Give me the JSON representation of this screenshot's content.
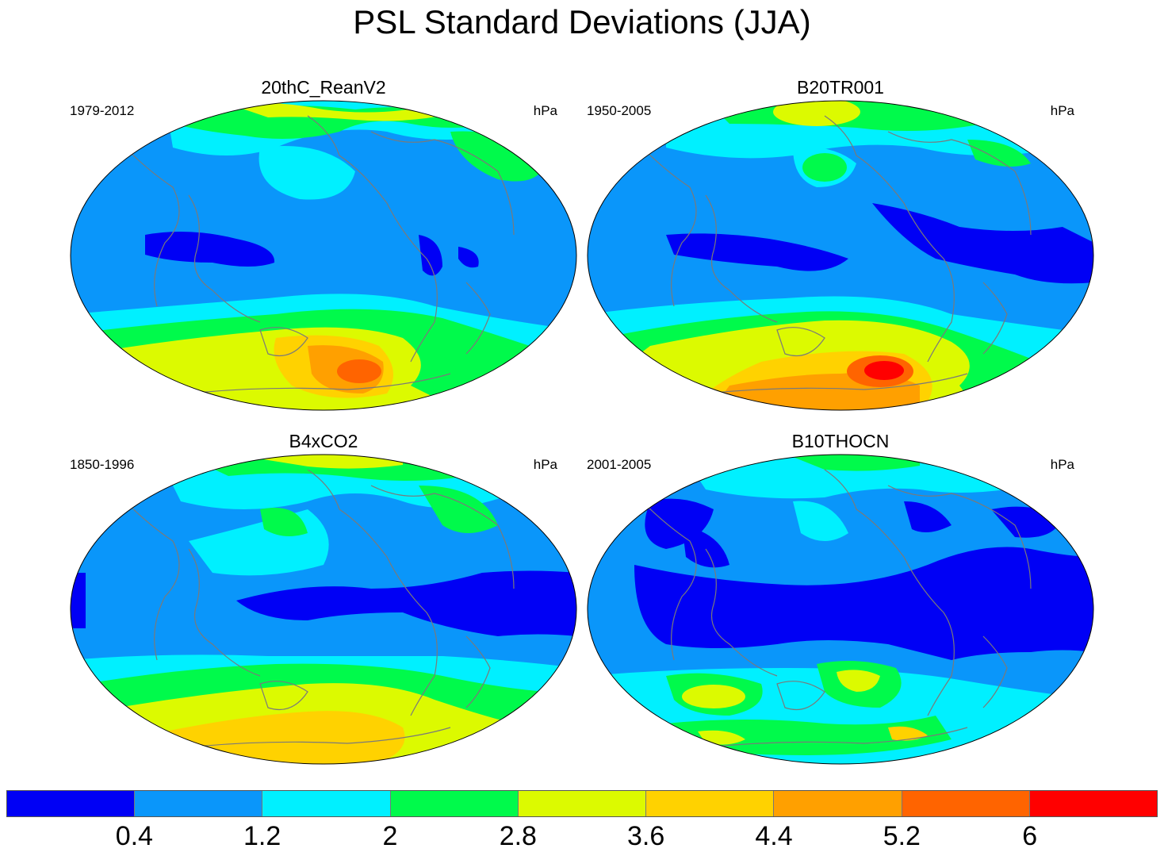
{
  "title": "PSL Standard Deviations (JJA)",
  "panels": [
    {
      "name": "20thC_ReanV2",
      "period": "1979-2012",
      "units": "hPa"
    },
    {
      "name": "B20TR001",
      "period": "1950-2005",
      "units": "hPa"
    },
    {
      "name": "B4xCO2",
      "period": "1850-1996",
      "units": "hPa"
    },
    {
      "name": "B10THOCN",
      "period": "2001-2005",
      "units": "hPa"
    }
  ],
  "colorbar": {
    "colors": [
      "#0000f5",
      "#0a96fa",
      "#00f0ff",
      "#00fa4b",
      "#dcfa00",
      "#ffd200",
      "#ffa000",
      "#ff6400",
      "#ff0000"
    ],
    "labels": [
      "0.4",
      "1.2",
      "2",
      "2.8",
      "3.6",
      "4.4",
      "5.2",
      "6"
    ]
  },
  "colors": {
    "background": "#0a96fa",
    "coastline": "#7a7a7a"
  }
}
